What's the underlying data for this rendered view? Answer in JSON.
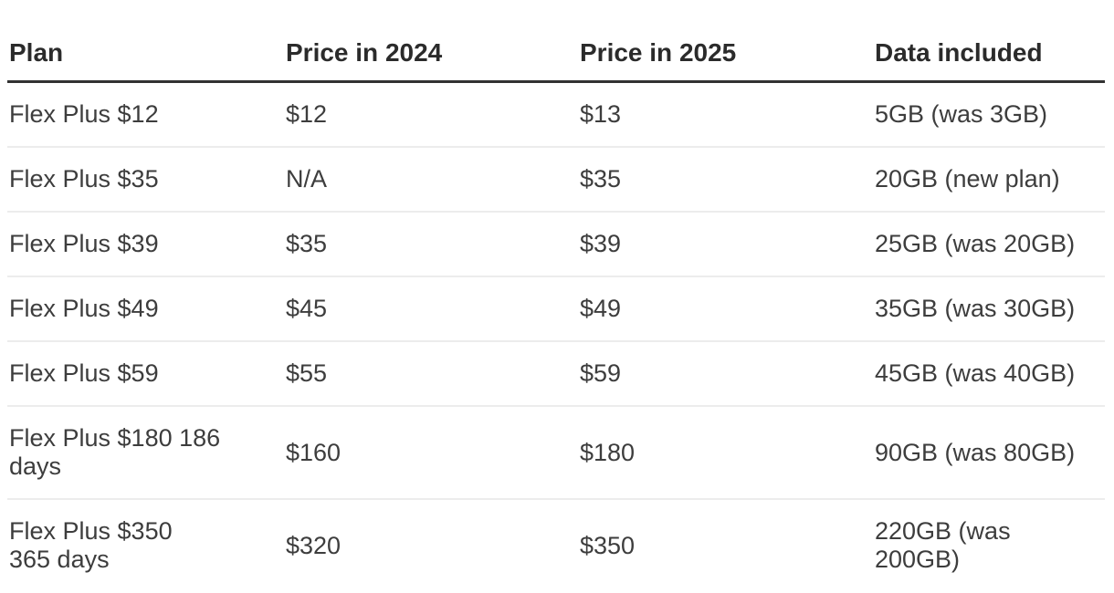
{
  "chart_data": {
    "type": "table",
    "headers": [
      "Plan",
      "Price in 2024",
      "Price in 2025",
      "Data included"
    ],
    "rows": [
      {
        "plan": "Flex Plus $12",
        "price_2024": "$12",
        "price_2025": "$13",
        "data_included": "5GB (was 3GB)"
      },
      {
        "plan": "Flex Plus $35",
        "price_2024": "N/A",
        "price_2025": "$35",
        "data_included": "20GB (new plan)"
      },
      {
        "plan": "Flex Plus $39",
        "price_2024": "$35",
        "price_2025": "$39",
        "data_included": "25GB (was 20GB)"
      },
      {
        "plan": "Flex Plus $49",
        "price_2024": "$45",
        "price_2025": "$49",
        "data_included": "35GB (was 30GB)"
      },
      {
        "plan": "Flex Plus $59",
        "price_2024": "$55",
        "price_2025": "$59",
        "data_included": "45GB (was 40GB)"
      },
      {
        "plan": "Flex Plus $180 186\ndays",
        "price_2024": "$160",
        "price_2025": "$180",
        "data_included": "90GB (was 80GB)"
      },
      {
        "plan": "Flex Plus $350\n365 days",
        "price_2024": "$320",
        "price_2025": "$350",
        "data_included": "220GB (was\n200GB)"
      }
    ],
    "layout": {
      "grid": "horizontal row separators only",
      "header_rule": "thick dark",
      "last_row_rule": "none"
    }
  },
  "colors": {
    "background": "#ffffff",
    "header_text": "#2b2b2b",
    "body_text": "#3d3d3d",
    "header_border": "#323232",
    "row_border": "#ececec"
  }
}
